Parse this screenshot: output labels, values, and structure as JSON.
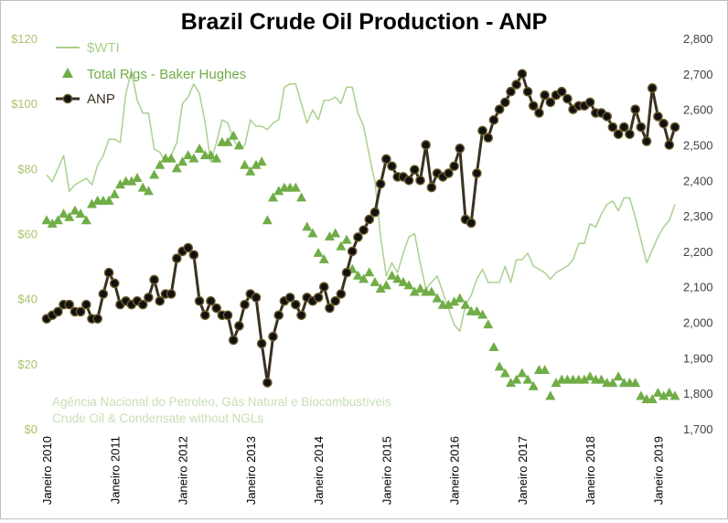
{
  "chart_data": {
    "type": "line",
    "title": "Brazil Crude Oil Production - ANP",
    "left_axis": {
      "min": 0,
      "max": 120,
      "ticks": [
        "$0",
        "$20",
        "$40",
        "$60",
        "$80",
        "$100",
        "$120"
      ],
      "tick_values": [
        0,
        20,
        40,
        60,
        80,
        100,
        120
      ]
    },
    "right_axis": {
      "min": 1700,
      "max": 2800,
      "ticks": [
        "1,700",
        "1,800",
        "1,900",
        "2,000",
        "2,100",
        "2,200",
        "2,300",
        "2,400",
        "2,500",
        "2,600",
        "2,700",
        "2,800"
      ],
      "tick_values": [
        1700,
        1800,
        1900,
        2000,
        2100,
        2200,
        2300,
        2400,
        2500,
        2600,
        2700,
        2800
      ]
    },
    "x_ticks": [
      "Janeiro 2010",
      "Janeiro 2011",
      "Janeiro 2012",
      "Janeiro 2013",
      "Janeiro 2014",
      "Janeiro 2015",
      "Janeiro 2016",
      "Janeiro 2017",
      "Janeiro 2018",
      "Janeiro 2019"
    ],
    "x_tick_index": [
      0,
      12,
      24,
      36,
      48,
      60,
      72,
      84,
      96,
      108
    ],
    "n_months": 112,
    "legend": [
      {
        "label": "$WTI",
        "series": "wti"
      },
      {
        "label": "Total Rigs - Baker Hughes",
        "series": "rigs"
      },
      {
        "label": "ANP",
        "series": "anp"
      }
    ],
    "annotation": [
      "Agência Nacional do Petroleo, Gás Natural e Biocombustíveis",
      "Crude Oil & Condensate without NGLs"
    ],
    "colors": {
      "wti": "#a9d18e",
      "rigs": "#70ad47",
      "anp": "#3a3120",
      "anp_fill": "#111111",
      "title": "#000000",
      "axis_text": "#a9c46c",
      "annotation": "#c5e0b4"
    },
    "series": {
      "wti": [
        78,
        76,
        80,
        84,
        73,
        75,
        76,
        77,
        75,
        81,
        84,
        89,
        89,
        88,
        103,
        110,
        101,
        97,
        97,
        86,
        85,
        82,
        84,
        88,
        100,
        102,
        106,
        103,
        94,
        82,
        88,
        95,
        94,
        89,
        86,
        87,
        95,
        93,
        93,
        92,
        94,
        95,
        105,
        106,
        106,
        100,
        94,
        98,
        95,
        101,
        101,
        102,
        100,
        105,
        105,
        97,
        93,
        84,
        76,
        59,
        47,
        51,
        48,
        54,
        59,
        60,
        51,
        43,
        45,
        47,
        42,
        37,
        32,
        30,
        38,
        41,
        46,
        49,
        45,
        45,
        45,
        50,
        45,
        52,
        52,
        54,
        50,
        49,
        48,
        46,
        48,
        49,
        50,
        52,
        57,
        57,
        63,
        62,
        66,
        69,
        70,
        67,
        71,
        71,
        65,
        58,
        51,
        55,
        59,
        62,
        64,
        69
      ],
      "rigs": [
        64,
        63,
        64,
        66,
        65,
        67,
        66,
        64,
        69,
        70,
        70,
        70,
        72,
        75,
        76,
        76,
        77,
        74,
        73,
        78,
        81,
        83,
        83,
        80,
        82,
        84,
        83,
        86,
        84,
        84,
        83,
        88,
        88,
        90,
        87,
        81,
        79,
        81,
        82,
        64,
        71,
        73,
        74,
        74,
        74,
        71,
        62,
        60,
        54,
        52,
        59,
        60,
        56,
        58,
        49,
        47,
        46,
        48,
        45,
        43,
        44,
        47,
        46,
        45,
        44,
        42,
        43,
        42,
        42,
        40,
        38,
        38,
        39,
        40,
        38,
        36,
        36,
        35,
        32,
        25,
        19,
        17,
        14,
        15,
        17,
        15,
        13,
        18,
        18,
        10,
        14,
        15,
        15,
        15,
        15,
        15,
        16,
        15,
        15,
        14,
        14,
        16,
        14,
        14,
        14,
        10,
        9,
        9,
        11,
        10,
        11,
        10
      ],
      "anp": [
        2010,
        2020,
        2030,
        2050,
        2050,
        2030,
        2030,
        2050,
        2010,
        2010,
        2080,
        2140,
        2110,
        2050,
        2060,
        2050,
        2060,
        2050,
        2070,
        2120,
        2060,
        2080,
        2080,
        2180,
        2200,
        2210,
        2190,
        2060,
        2020,
        2060,
        2040,
        2020,
        2020,
        1950,
        1990,
        2050,
        2080,
        2070,
        1940,
        1830,
        1960,
        2020,
        2060,
        2070,
        2050,
        2020,
        2070,
        2060,
        2070,
        2100,
        2040,
        2060,
        2080,
        2140,
        2200,
        2240,
        2260,
        2290,
        2310,
        2390,
        2460,
        2440,
        2410,
        2410,
        2400,
        2430,
        2400,
        2500,
        2380,
        2420,
        2410,
        2420,
        2440,
        2490,
        2290,
        2280,
        2420,
        2540,
        2520,
        2570,
        2600,
        2620,
        2650,
        2670,
        2700,
        2650,
        2610,
        2590,
        2640,
        2620,
        2640,
        2650,
        2630,
        2600,
        2610,
        2610,
        2620,
        2590,
        2590,
        2580,
        2550,
        2530,
        2550,
        2530,
        2600,
        2550,
        2510,
        2660,
        2580,
        2560,
        2500,
        2550
      ]
    }
  }
}
